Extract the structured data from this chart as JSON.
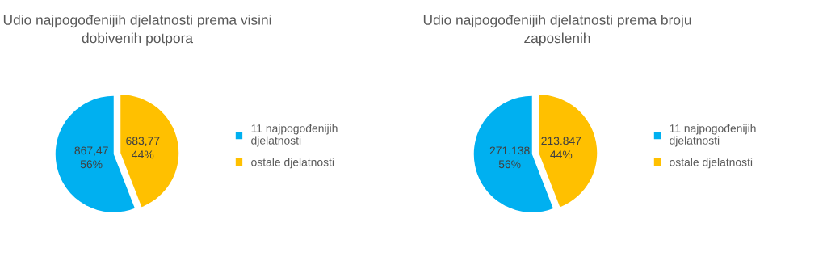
{
  "chart_data": [
    {
      "type": "pie",
      "title": "Udio najpogođenijih djelatnosti prema visini\ndobivenih potpora",
      "categories": [
        "11 najpogođenijih\ndjelatnosti",
        "ostale djelatnosti"
      ],
      "values": [
        867.47,
        683.77
      ],
      "colors": [
        "#00b0f0",
        "#ffc000"
      ],
      "value_labels": [
        "867,47\n56%",
        "683,77\n44%"
      ],
      "legend": "right"
    },
    {
      "type": "pie",
      "title": "Udio najpogođenijih djelatnosti prema broju\nzaposlenih",
      "categories": [
        "11 najpogođenijih\ndjelatnosti",
        "ostale djelatnosti"
      ],
      "values": [
        271138,
        213847
      ],
      "colors": [
        "#00b0f0",
        "#ffc000"
      ],
      "value_labels": [
        "271.138\n56%",
        "213.847\n44%"
      ],
      "legend": "right"
    }
  ]
}
